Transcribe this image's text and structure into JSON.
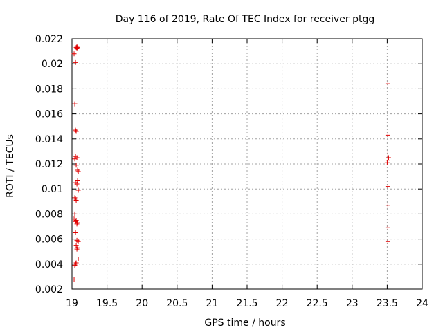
{
  "chart_data": {
    "type": "scatter",
    "title": "Day 116 of 2019, Rate Of TEC Index for receiver ptgg",
    "xlabel": "GPS time / hours",
    "ylabel": "ROTI / TECUs",
    "xlim": [
      19,
      24
    ],
    "ylim": [
      0.002,
      0.022
    ],
    "xticks": [
      "19",
      "19.5",
      "20",
      "20.5",
      "21",
      "21.5",
      "22",
      "22.5",
      "23",
      "23.5",
      "24"
    ],
    "yticks": [
      "0.002",
      "0.004",
      "0.006",
      "0.008",
      "0.01",
      "0.012",
      "0.014",
      "0.016",
      "0.018",
      "0.02",
      "0.022"
    ],
    "grid": true,
    "marker": "plus",
    "color": "#e00000",
    "points": [
      [
        19.06,
        0.0213
      ],
      [
        19.07,
        0.0214
      ],
      [
        19.08,
        0.0213
      ],
      [
        19.07,
        0.0212
      ],
      [
        19.03,
        0.0208
      ],
      [
        19.05,
        0.0201
      ],
      [
        19.04,
        0.0168
      ],
      [
        19.05,
        0.0147
      ],
      [
        19.06,
        0.0146
      ],
      [
        19.05,
        0.0126
      ],
      [
        19.07,
        0.0125
      ],
      [
        19.04,
        0.0124
      ],
      [
        19.06,
        0.0119
      ],
      [
        19.08,
        0.0115
      ],
      [
        19.09,
        0.0114
      ],
      [
        19.08,
        0.0107
      ],
      [
        19.05,
        0.0105
      ],
      [
        19.07,
        0.0104
      ],
      [
        19.09,
        0.0099
      ],
      [
        19.04,
        0.0093
      ],
      [
        19.05,
        0.0092
      ],
      [
        19.06,
        0.0091
      ],
      [
        19.04,
        0.008
      ],
      [
        19.03,
        0.0076
      ],
      [
        19.06,
        0.0075
      ],
      [
        19.05,
        0.0074
      ],
      [
        19.08,
        0.0073
      ],
      [
        19.07,
        0.0072
      ],
      [
        19.05,
        0.0065
      ],
      [
        19.07,
        0.0059
      ],
      [
        19.09,
        0.0058
      ],
      [
        19.06,
        0.0055
      ],
      [
        19.08,
        0.0053
      ],
      [
        19.07,
        0.0052
      ],
      [
        19.09,
        0.0044
      ],
      [
        19.06,
        0.0041
      ],
      [
        19.05,
        0.004
      ],
      [
        19.04,
        0.0039
      ],
      [
        19.03,
        0.0028
      ],
      [
        23.51,
        0.0184
      ],
      [
        23.51,
        0.0143
      ],
      [
        23.51,
        0.0128
      ],
      [
        23.52,
        0.0125
      ],
      [
        23.51,
        0.0123
      ],
      [
        23.5,
        0.0121
      ],
      [
        23.51,
        0.0102
      ],
      [
        23.51,
        0.0087
      ],
      [
        23.51,
        0.0069
      ],
      [
        23.51,
        0.0058
      ]
    ]
  }
}
